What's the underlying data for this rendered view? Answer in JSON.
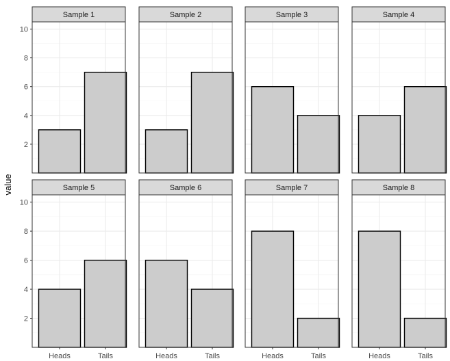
{
  "chart_data": {
    "type": "bar",
    "layout": "faceted",
    "ylabel": "value",
    "xlabel": "",
    "categories": [
      "Heads",
      "Tails"
    ],
    "ylim": [
      0,
      10.5
    ],
    "yticks": [
      2,
      4,
      6,
      8,
      10
    ],
    "grid": true,
    "panels": [
      {
        "title": "Sample 1",
        "values": [
          3,
          7
        ]
      },
      {
        "title": "Sample 2",
        "values": [
          3,
          7
        ]
      },
      {
        "title": "Sample 3",
        "values": [
          6,
          4
        ]
      },
      {
        "title": "Sample 4",
        "values": [
          4,
          6
        ]
      },
      {
        "title": "Sample 5",
        "values": [
          4,
          6
        ]
      },
      {
        "title": "Sample 6",
        "values": [
          6,
          4
        ]
      },
      {
        "title": "Sample 7",
        "values": [
          8,
          2
        ]
      },
      {
        "title": "Sample 8",
        "values": [
          8,
          2
        ]
      }
    ]
  },
  "colors": {
    "bar_fill": "#cccccc",
    "bar_stroke": "#000000",
    "strip_fill": "#d9d9d9",
    "panel_border": "#333333",
    "grid_major": "#ebebeb",
    "grid_minor": "#f5f5f5"
  }
}
